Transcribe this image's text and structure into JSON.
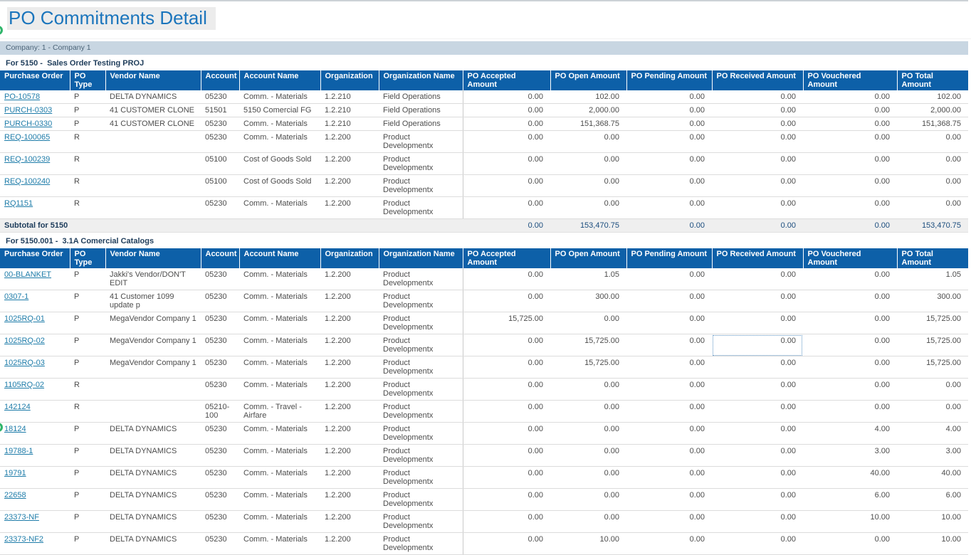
{
  "page": {
    "title": "PO Commitments Detail"
  },
  "company_bar": {
    "label": "Company: 1 - Company 1"
  },
  "colors": {
    "header_bg": "#0d60a8",
    "company_bar_bg": "#c8d6e2",
    "title_blue": "#1b75bc",
    "link_blue": "#1e7ca9",
    "subtotal_text": "#1b4d7e",
    "edge_badge_green": "#2fb56a"
  },
  "icons": {
    "top_left_badge": "green-circle-icon",
    "bottom_left_badge": "green-circle-icon"
  },
  "columns": [
    "Purchase Order",
    "PO Type",
    "Vendor Name",
    "Account",
    "Account Name",
    "Organization",
    "Organization Name",
    "PO Accepted Amount",
    "PO Open Amount",
    "PO Pending Amount",
    "PO Received Amount",
    "PO Vouchered Amount",
    "PO Total Amount"
  ],
  "focus": {
    "po": "1025RQ-02",
    "field": "PO Received Amount"
  },
  "sections": [
    {
      "heading": "For 5150 -  Sales Order Testing PROJ",
      "rows": [
        {
          "po": "PO-10578",
          "type": "P",
          "vendor": "DELTA DYNAMICS",
          "account": "05230",
          "account_name": "Comm. - Materials",
          "org": "1.2.210",
          "org_name": "Field Operations",
          "amounts": [
            "0.00",
            "102.00",
            "0.00",
            "0.00",
            "0.00",
            "102.00"
          ]
        },
        {
          "po": "PURCH-0303",
          "type": "P",
          "vendor": "41 CUSTOMER CLONE",
          "account": "51501",
          "account_name": "5150 Comercial FG",
          "org": "1.2.210",
          "org_name": "Field Operations",
          "amounts": [
            "0.00",
            "2,000.00",
            "0.00",
            "0.00",
            "0.00",
            "2,000.00"
          ]
        },
        {
          "po": "PURCH-0330",
          "type": "P",
          "vendor": "41 CUSTOMER CLONE",
          "account": "05230",
          "account_name": "Comm. - Materials",
          "org": "1.2.210",
          "org_name": "Field Operations",
          "amounts": [
            "0.00",
            "151,368.75",
            "0.00",
            "0.00",
            "0.00",
            "151,368.75"
          ]
        },
        {
          "po": "REQ-100065",
          "type": "R",
          "vendor": "",
          "account": "05230",
          "account_name": "Comm. - Materials",
          "org": "1.2.200",
          "org_name": "Product Developmentx",
          "amounts": [
            "0.00",
            "0.00",
            "0.00",
            "0.00",
            "0.00",
            "0.00"
          ]
        },
        {
          "po": "REQ-100239",
          "type": "R",
          "vendor": "",
          "account": "05100",
          "account_name": "Cost of Goods Sold",
          "org": "1.2.200",
          "org_name": "Product Developmentx",
          "amounts": [
            "0.00",
            "0.00",
            "0.00",
            "0.00",
            "0.00",
            "0.00"
          ]
        },
        {
          "po": "REQ-100240",
          "type": "R",
          "vendor": "",
          "account": "05100",
          "account_name": "Cost of Goods Sold",
          "org": "1.2.200",
          "org_name": "Product Developmentx",
          "amounts": [
            "0.00",
            "0.00",
            "0.00",
            "0.00",
            "0.00",
            "0.00"
          ]
        },
        {
          "po": "RQ1151",
          "type": "R",
          "vendor": "",
          "account": "05230",
          "account_name": "Comm. - Materials",
          "org": "1.2.200",
          "org_name": "Product Developmentx",
          "amounts": [
            "0.00",
            "0.00",
            "0.00",
            "0.00",
            "0.00",
            "0.00"
          ]
        }
      ],
      "subtotal": {
        "label": "Subtotal for 5150",
        "amounts": [
          "0.00",
          "153,470.75",
          "0.00",
          "0.00",
          "0.00",
          "153,470.75"
        ]
      }
    },
    {
      "heading": "For 5150.001 -  3.1A Comercial Catalogs",
      "rows": [
        {
          "po": "00-BLANKET",
          "type": "P",
          "vendor": "Jakki's Vendor/DON'T EDIT",
          "account": "05230",
          "account_name": "Comm. - Materials",
          "org": "1.2.200",
          "org_name": "Product Developmentx",
          "amounts": [
            "0.00",
            "1.05",
            "0.00",
            "0.00",
            "0.00",
            "1.05"
          ]
        },
        {
          "po": "0307-1",
          "type": "P",
          "vendor": "41 Customer 1099 update p",
          "account": "05230",
          "account_name": "Comm. - Materials",
          "org": "1.2.200",
          "org_name": "Product Developmentx",
          "amounts": [
            "0.00",
            "300.00",
            "0.00",
            "0.00",
            "0.00",
            "300.00"
          ]
        },
        {
          "po": "1025RQ-01",
          "type": "P",
          "vendor": "MegaVendor Company 1",
          "account": "05230",
          "account_name": "Comm. - Materials",
          "org": "1.2.200",
          "org_name": "Product Developmentx",
          "amounts": [
            "15,725.00",
            "0.00",
            "0.00",
            "0.00",
            "0.00",
            "15,725.00"
          ]
        },
        {
          "po": "1025RQ-02",
          "type": "P",
          "vendor": "MegaVendor Company 1",
          "account": "05230",
          "account_name": "Comm. - Materials",
          "org": "1.2.200",
          "org_name": "Product Developmentx",
          "amounts": [
            "0.00",
            "15,725.00",
            "0.00",
            "0.00",
            "0.00",
            "15,725.00"
          ]
        },
        {
          "po": "1025RQ-03",
          "type": "P",
          "vendor": "MegaVendor Company 1",
          "account": "05230",
          "account_name": "Comm. - Materials",
          "org": "1.2.200",
          "org_name": "Product Developmentx",
          "amounts": [
            "0.00",
            "15,725.00",
            "0.00",
            "0.00",
            "0.00",
            "15,725.00"
          ]
        },
        {
          "po": "1105RQ-02",
          "type": "R",
          "vendor": "",
          "account": "05230",
          "account_name": "Comm. - Materials",
          "org": "1.2.200",
          "org_name": "Product Developmentx",
          "amounts": [
            "0.00",
            "0.00",
            "0.00",
            "0.00",
            "0.00",
            "0.00"
          ]
        },
        {
          "po": "142124",
          "type": "R",
          "vendor": "",
          "account": "05210-100",
          "account_name": "Comm. - Travel - Airfare",
          "org": "1.2.200",
          "org_name": "Product Developmentx",
          "amounts": [
            "0.00",
            "0.00",
            "0.00",
            "0.00",
            "0.00",
            "0.00"
          ]
        },
        {
          "po": "18124",
          "type": "P",
          "vendor": "DELTA DYNAMICS",
          "account": "05230",
          "account_name": "Comm. - Materials",
          "org": "1.2.200",
          "org_name": "Product Developmentx",
          "amounts": [
            "0.00",
            "0.00",
            "0.00",
            "0.00",
            "4.00",
            "4.00"
          ]
        },
        {
          "po": "19788-1",
          "type": "P",
          "vendor": "DELTA DYNAMICS",
          "account": "05230",
          "account_name": "Comm. - Materials",
          "org": "1.2.200",
          "org_name": "Product Developmentx",
          "amounts": [
            "0.00",
            "0.00",
            "0.00",
            "0.00",
            "3.00",
            "3.00"
          ]
        },
        {
          "po": "19791",
          "type": "P",
          "vendor": "DELTA DYNAMICS",
          "account": "05230",
          "account_name": "Comm. - Materials",
          "org": "1.2.200",
          "org_name": "Product Developmentx",
          "amounts": [
            "0.00",
            "0.00",
            "0.00",
            "0.00",
            "40.00",
            "40.00"
          ]
        },
        {
          "po": "22658",
          "type": "P",
          "vendor": "DELTA DYNAMICS",
          "account": "05230",
          "account_name": "Comm. - Materials",
          "org": "1.2.200",
          "org_name": "Product Developmentx",
          "amounts": [
            "0.00",
            "0.00",
            "0.00",
            "0.00",
            "6.00",
            "6.00"
          ]
        },
        {
          "po": "23373-NF",
          "type": "P",
          "vendor": "DELTA DYNAMICS",
          "account": "05230",
          "account_name": "Comm. - Materials",
          "org": "1.2.200",
          "org_name": "Product Developmentx",
          "amounts": [
            "0.00",
            "0.00",
            "0.00",
            "0.00",
            "10.00",
            "10.00"
          ]
        },
        {
          "po": "23373-NF2",
          "type": "P",
          "vendor": "DELTA DYNAMICS",
          "account": "05230",
          "account_name": "Comm. - Materials",
          "org": "1.2.200",
          "org_name": "Product Developmentx",
          "amounts": [
            "0.00",
            "10.00",
            "0.00",
            "0.00",
            "0.00",
            "10.00"
          ]
        }
      ]
    }
  ]
}
